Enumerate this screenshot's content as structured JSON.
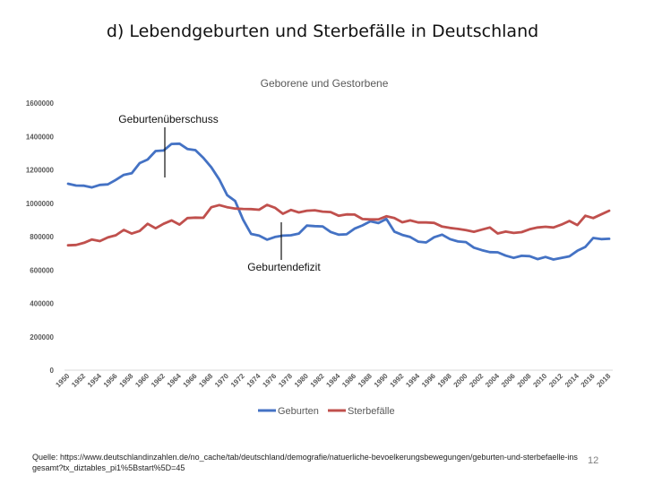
{
  "slide": {
    "title": "d) Lebendgeburten und Sterbefälle in Deutschland",
    "source": "Quelle: https://www.deutschlandinzahlen.de/no_cache/tab/deutschland/demografie/natuerliche-bevoelkerungsbewegungen/geburten-und-sterbefaelle-insgesamt?tx_diztables_pi1%5Bstart%5D=45",
    "page_number": "12"
  },
  "chart_data": {
    "type": "line",
    "title": "Geborene und Gestorbene",
    "xlabel": "",
    "ylabel": "",
    "ylim": [
      0,
      1600000
    ],
    "yticks": [
      0,
      200000,
      400000,
      600000,
      800000,
      1000000,
      1200000,
      1400000,
      1600000
    ],
    "grid": false,
    "legend": "bottom",
    "x": [
      1950,
      1951,
      1952,
      1953,
      1954,
      1955,
      1956,
      1957,
      1958,
      1959,
      1960,
      1961,
      1962,
      1963,
      1964,
      1965,
      1966,
      1967,
      1968,
      1969,
      1970,
      1971,
      1972,
      1973,
      1974,
      1975,
      1976,
      1977,
      1978,
      1979,
      1980,
      1981,
      1982,
      1983,
      1984,
      1985,
      1986,
      1987,
      1988,
      1989,
      1990,
      1991,
      1992,
      1993,
      1994,
      1995,
      1996,
      1997,
      1998,
      1999,
      2000,
      2001,
      2002,
      2003,
      2004,
      2005,
      2006,
      2007,
      2008,
      2009,
      2010,
      2011,
      2012,
      2013,
      2014,
      2015,
      2016,
      2017,
      2018
    ],
    "xtick_labels": [
      "1950",
      "1952",
      "1954",
      "1956",
      "1958",
      "1960",
      "1962",
      "1964",
      "1966",
      "1968",
      "1970",
      "1972",
      "1974",
      "1976",
      "1978",
      "1980",
      "1982",
      "1984",
      "1986",
      "1988",
      "1990",
      "1992",
      "1994",
      "1996",
      "1998",
      "2000",
      "2002",
      "2004",
      "2006",
      "2008",
      "2010",
      "2012",
      "2014",
      "2016",
      "2018"
    ],
    "series": [
      {
        "name": "Geburten",
        "color": "#4472c4",
        "values": [
          1117000,
          1106000,
          1105000,
          1095000,
          1110000,
          1113000,
          1140000,
          1170000,
          1180000,
          1240000,
          1262000,
          1313000,
          1316000,
          1355000,
          1357000,
          1325000,
          1318000,
          1272000,
          1215000,
          1142000,
          1048000,
          1013000,
          901000,
          816000,
          806000,
          782000,
          798000,
          806000,
          808000,
          818000,
          866000,
          863000,
          861000,
          828000,
          812000,
          814000,
          848000,
          867000,
          892000,
          881000,
          906000,
          830000,
          810000,
          798000,
          770000,
          765000,
          796000,
          812000,
          785000,
          771000,
          767000,
          734000,
          719000,
          707000,
          706000,
          686000,
          673000,
          685000,
          683000,
          665000,
          678000,
          663000,
          673000,
          682000,
          715000,
          738000,
          792000,
          785000,
          787000
        ]
      },
      {
        "name": "Sterbefälle",
        "color": "#c0504d",
        "values": [
          748000,
          750000,
          763000,
          783000,
          773000,
          795000,
          808000,
          840000,
          818000,
          834000,
          877000,
          850000,
          877000,
          897000,
          872000,
          911000,
          914000,
          913000,
          976000,
          989000,
          976000,
          968000,
          966000,
          965000,
          961000,
          990000,
          973000,
          937000,
          960000,
          945000,
          955000,
          958000,
          950000,
          947000,
          925000,
          933000,
          932000,
          905000,
          903000,
          903000,
          922000,
          911000,
          886000,
          897000,
          885000,
          885000,
          882000,
          860000,
          852000,
          846000,
          839000,
          829000,
          842000,
          855000,
          819000,
          830000,
          822000,
          827000,
          844000,
          855000,
          859000,
          855000,
          872000,
          894000,
          869000,
          925000,
          911000,
          933000,
          955000
        ]
      }
    ],
    "annotations": [
      "Geburtenüberschuss",
      "Geburtendefizit"
    ]
  }
}
